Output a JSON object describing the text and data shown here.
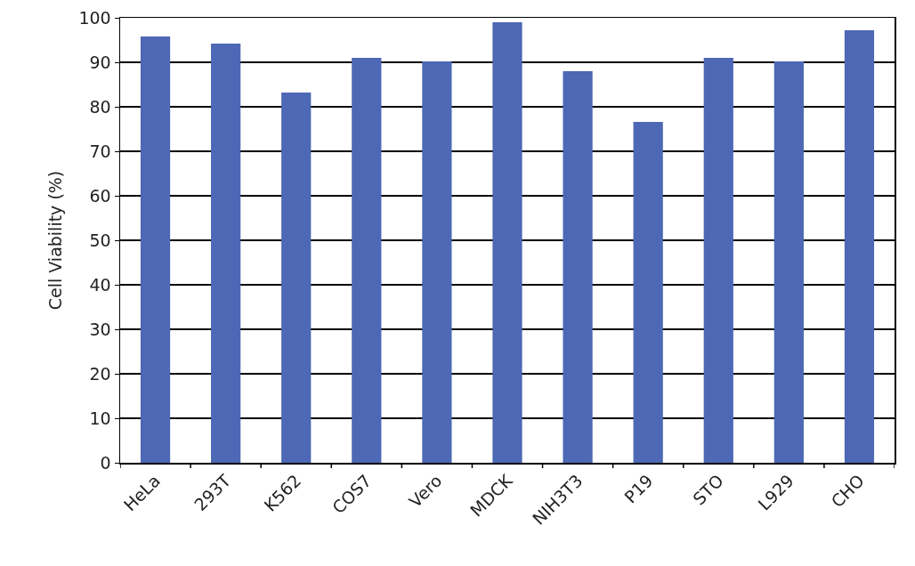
{
  "chart_data": {
    "type": "bar",
    "ylabel": "Cell Viability (%)",
    "categories": [
      "HeLa",
      "293T",
      "K562",
      "COS7",
      "Vero",
      "MDCK",
      "NIH3T3",
      "P19",
      "STO",
      "L929",
      "CHO"
    ],
    "values": [
      95.8,
      94.2,
      83.2,
      91,
      90.2,
      99,
      88,
      76.6,
      91,
      90.2,
      97.2
    ],
    "color": "#4d68b4",
    "ylim": [
      0,
      100
    ],
    "yticks": [
      0,
      10,
      20,
      30,
      40,
      50,
      60,
      70,
      80,
      90,
      100
    ],
    "grid": "y",
    "legend": false
  }
}
